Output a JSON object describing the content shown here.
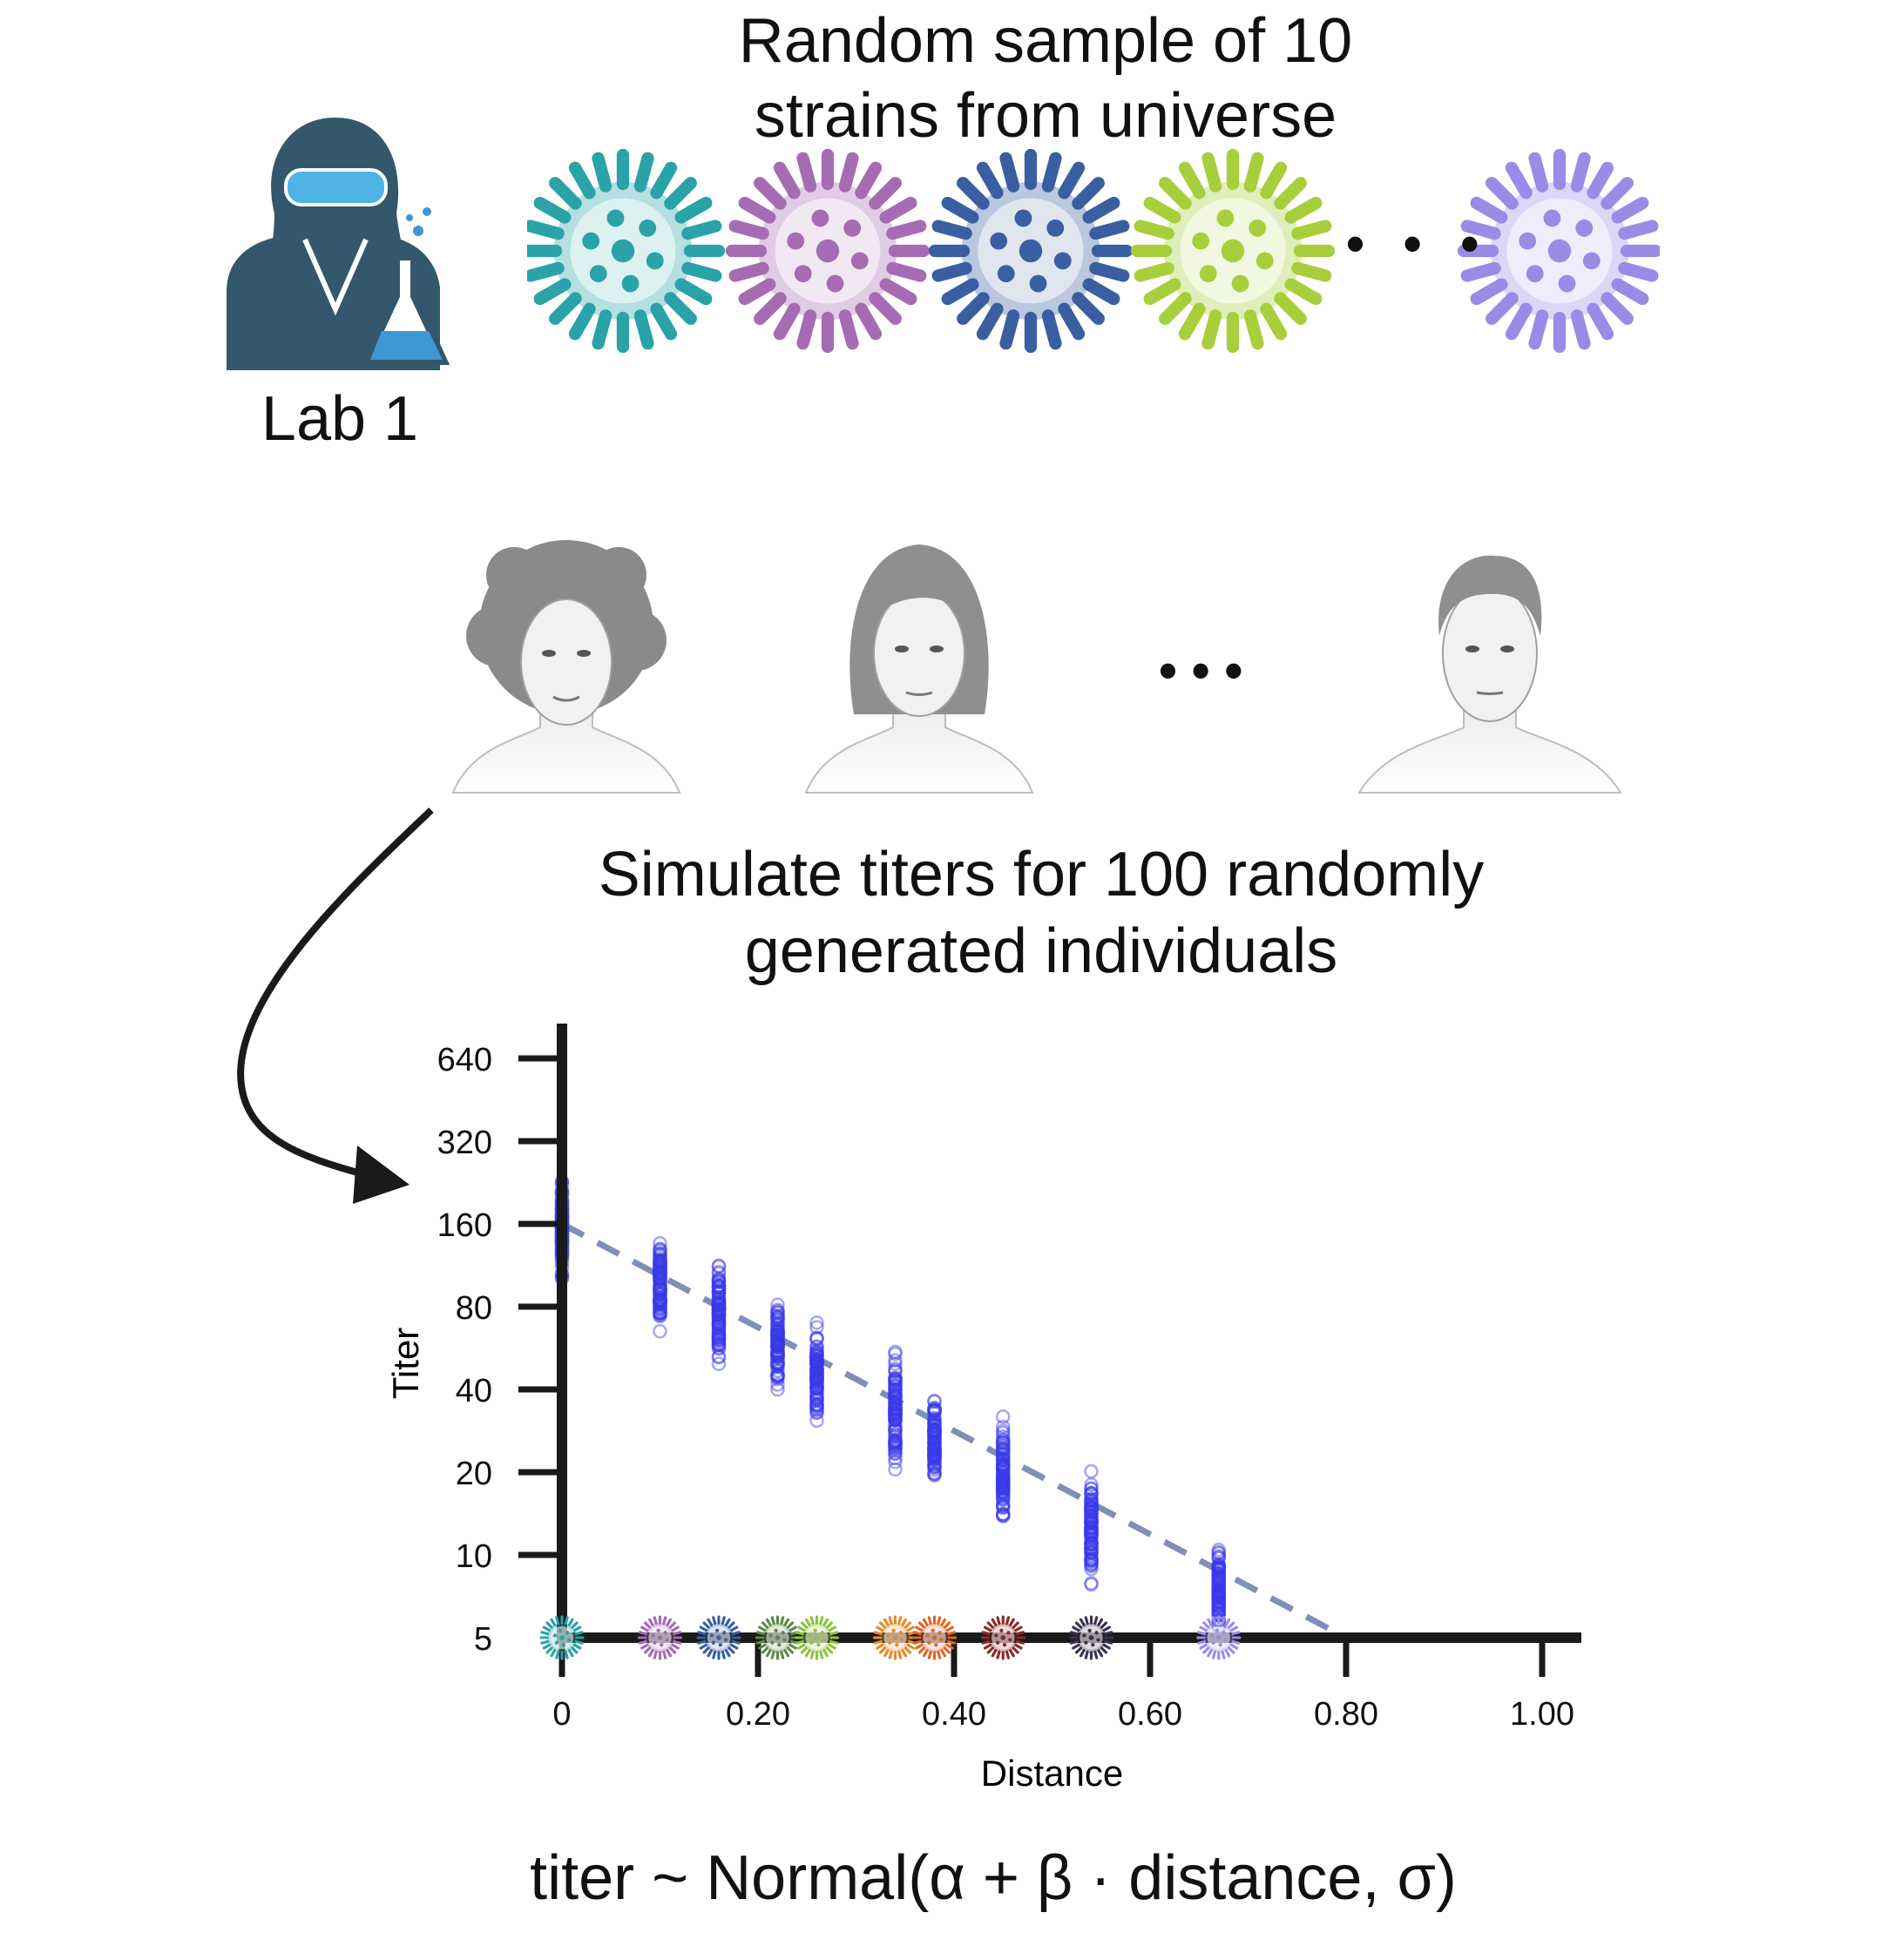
{
  "header": {
    "line1": "Random sample of 10",
    "line2": "strains from universe"
  },
  "lab": {
    "label": "Lab 1"
  },
  "strain_colors": [
    "#2aa3a8",
    "#a56cb3",
    "#3a5fa0",
    "#a7cf3b",
    "#9b8be6"
  ],
  "individuals": {
    "count_shown": 3,
    "ellipsis": "• • •"
  },
  "simulation": {
    "line1": "Simulate titers for 100 randomly",
    "line2": "generated individuals"
  },
  "formula": "titer ~ Normal(α + β · distance, σ)",
  "chart_data": {
    "type": "scatter",
    "xlabel": "Distance",
    "ylabel": "Titer",
    "x_ticks": [
      {
        "value": 0,
        "label": "0"
      },
      {
        "value": 0.2,
        "label": "0.20"
      },
      {
        "value": 0.4,
        "label": "0.40"
      },
      {
        "value": 0.6,
        "label": "0.60"
      },
      {
        "value": 0.8,
        "label": "0.80"
      },
      {
        "value": 1.0,
        "label": "1.00"
      }
    ],
    "y_ticks": [
      {
        "value": 5,
        "label": "5"
      },
      {
        "value": 10,
        "label": "10"
      },
      {
        "value": 20,
        "label": "20"
      },
      {
        "value": 40,
        "label": "40"
      },
      {
        "value": 80,
        "label": "80"
      },
      {
        "value": 160,
        "label": "160"
      },
      {
        "value": 320,
        "label": "320"
      },
      {
        "value": 640,
        "label": "640"
      }
    ],
    "xlim": [
      0,
      1.0
    ],
    "ylim": [
      5,
      640
    ],
    "y_scale": "log2",
    "point_color": "#3a3ae8",
    "trend_line": {
      "color": "#7f8fb8",
      "style": "dashed",
      "from": [
        0,
        160
      ],
      "to": [
        0.8,
        5
      ]
    },
    "strains": [
      {
        "distance": 0.0,
        "color": "#2aa3a8",
        "min": 95,
        "max": 250,
        "center": 150
      },
      {
        "distance": 0.1,
        "color": "#a56cb3",
        "min": 60,
        "max": 160,
        "center": 95
      },
      {
        "distance": 0.16,
        "color": "#3a5fa0",
        "min": 46,
        "max": 125,
        "center": 78
      },
      {
        "distance": 0.22,
        "color": "#5e8a4a",
        "min": 36,
        "max": 90,
        "center": 58
      },
      {
        "distance": 0.26,
        "color": "#8dc43e",
        "min": 28,
        "max": 75,
        "center": 45
      },
      {
        "distance": 0.34,
        "color": "#e58b2c",
        "min": 15,
        "max": 62,
        "center": 32
      },
      {
        "distance": 0.38,
        "color": "#e0672a",
        "min": 17,
        "max": 40,
        "center": 26
      },
      {
        "distance": 0.45,
        "color": "#8a2a2a",
        "min": 12,
        "max": 35,
        "center": 19
      },
      {
        "distance": 0.54,
        "color": "#3b3152",
        "min": 6.5,
        "max": 21,
        "center": 13
      },
      {
        "distance": 0.67,
        "color": "#9b8be6",
        "min": 5,
        "max": 12,
        "center": 7.5
      }
    ]
  }
}
